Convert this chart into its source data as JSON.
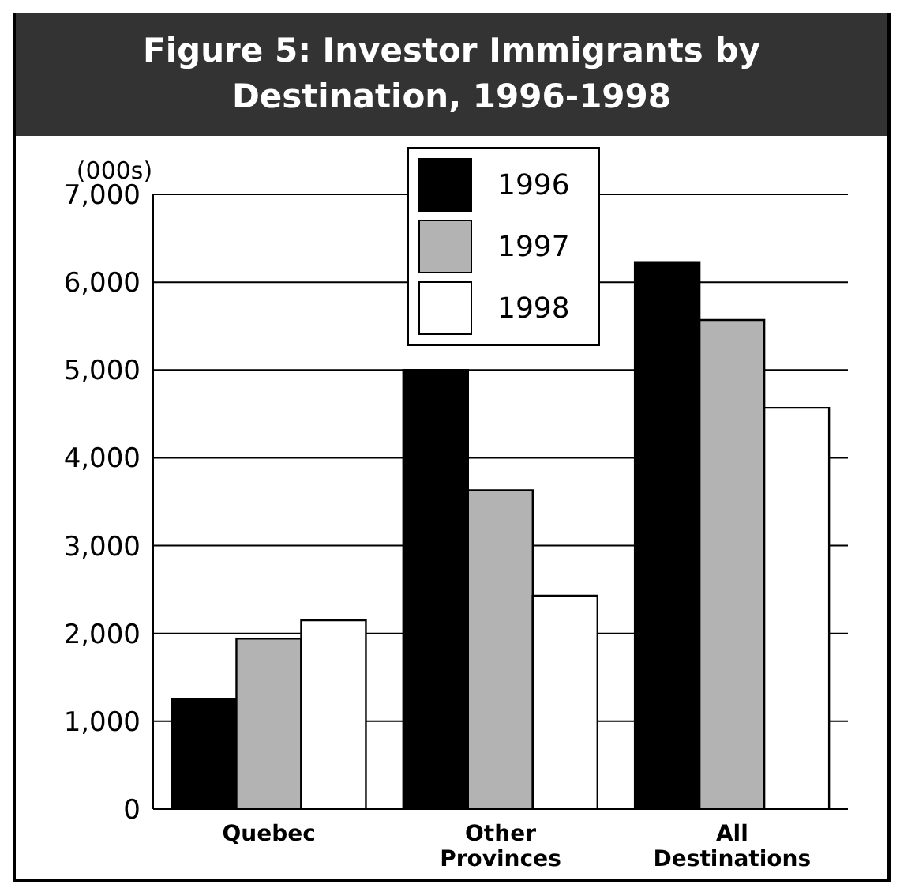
{
  "chart_data": {
    "type": "bar",
    "title": "Figure 5: Investor Immigrants by Destination, 1996-1998",
    "ylabel": "(000s)",
    "categories": [
      "Quebec",
      "Other Provinces",
      "All Destinations"
    ],
    "series": [
      {
        "name": "1996",
        "color": "#000000",
        "values": [
          1250,
          5000,
          6230
        ]
      },
      {
        "name": "1997",
        "color": "#b3b3b3",
        "values": [
          1940,
          3630,
          5570
        ]
      },
      {
        "name": "1998",
        "color": "#ffffff",
        "values": [
          2150,
          2430,
          4570
        ]
      }
    ],
    "ylim": [
      0,
      7000
    ],
    "yticks": [
      {
        "value": 0,
        "label": "0"
      },
      {
        "value": 1000,
        "label": "1,000"
      },
      {
        "value": 2000,
        "label": "2,000"
      },
      {
        "value": 3000,
        "label": "3,000"
      },
      {
        "value": 4000,
        "label": "4,000"
      },
      {
        "value": 5000,
        "label": "5,000"
      },
      {
        "value": 6000,
        "label": "6,000"
      },
      {
        "value": 7000,
        "label": "7,000"
      }
    ],
    "grid": "y",
    "legend": "top"
  }
}
